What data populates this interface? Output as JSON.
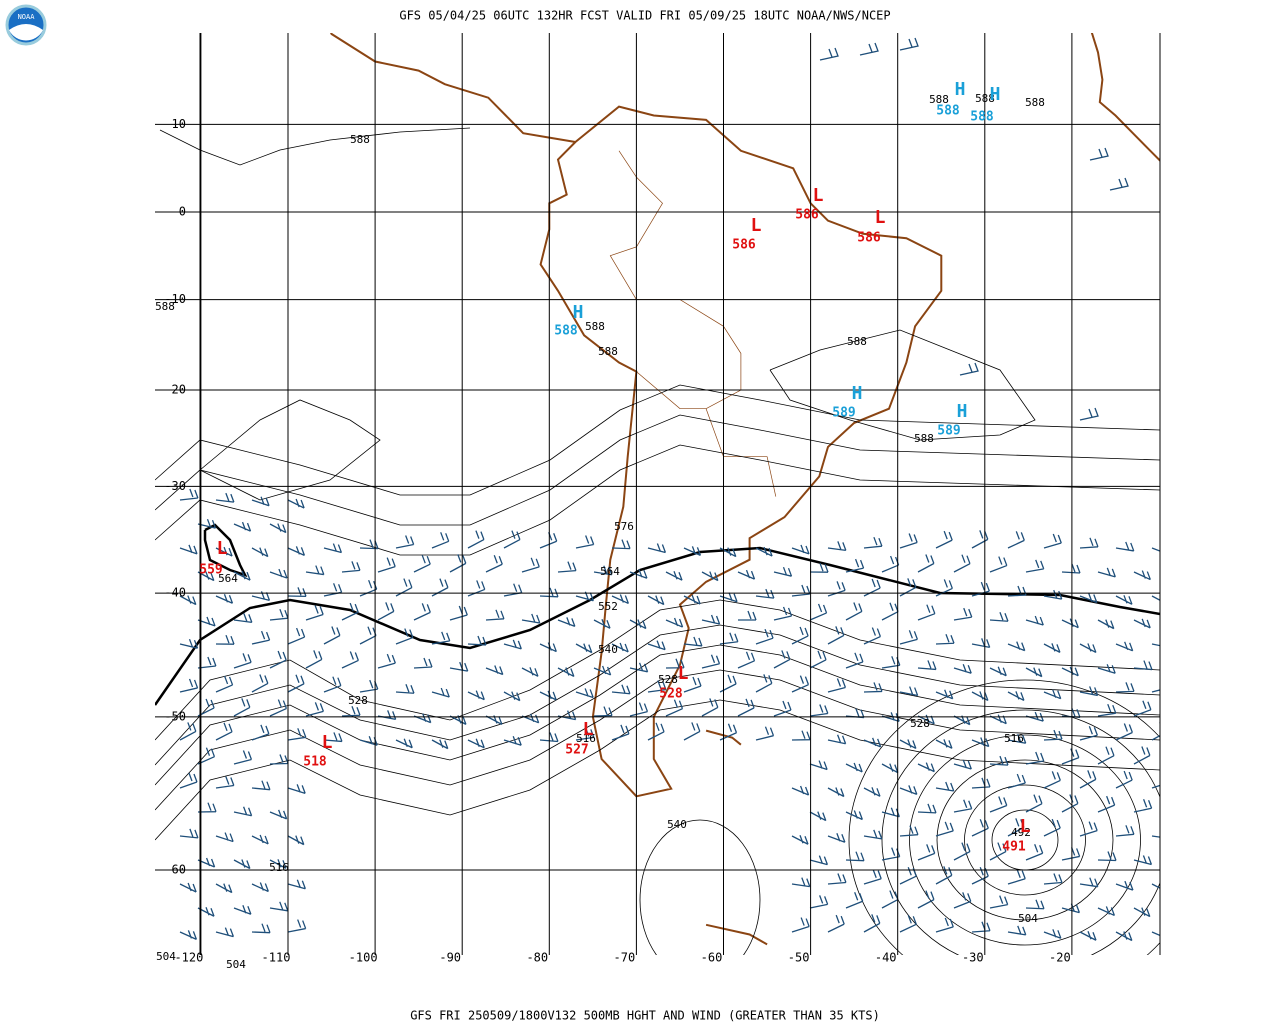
{
  "header": {
    "title": "GFS 05/04/25 06UTC 132HR FCST VALID FRI 05/09/25 18UTC NOAA/NWS/NCEP"
  },
  "footer": {
    "caption": "GFS FRI 250509/1800V132 500MB HGHT AND WIND (GREATER THAN 35 KTS)"
  },
  "logo": {
    "text": "NOAA"
  },
  "axes": {
    "longitudes": [
      -120,
      -110,
      -100,
      -90,
      -80,
      -70,
      -60,
      -50,
      -40,
      -30,
      -20
    ],
    "latitudes": [
      10,
      0,
      -10,
      -20,
      -30,
      -40,
      -50,
      -60
    ]
  },
  "contour_labels": [
    "588",
    "588",
    "588",
    "588",
    "588",
    "588",
    "588",
    "588",
    "588",
    "576",
    "564",
    "564",
    "552",
    "540",
    "528",
    "528",
    "528",
    "516",
    "516",
    "516",
    "540",
    "504",
    "504",
    "504",
    "492"
  ],
  "centers": [
    {
      "kind": "H",
      "value": "588"
    },
    {
      "kind": "H",
      "value": "588"
    },
    {
      "kind": "L",
      "value": "586"
    },
    {
      "kind": "L",
      "value": "586"
    },
    {
      "kind": "L",
      "value": "586"
    },
    {
      "kind": "H",
      "value": "588"
    },
    {
      "kind": "H",
      "value": "589"
    },
    {
      "kind": "H",
      "value": "589"
    },
    {
      "kind": "L",
      "value": "559"
    },
    {
      "kind": "L",
      "value": "528"
    },
    {
      "kind": "L",
      "value": "518"
    },
    {
      "kind": "L",
      "value": "527"
    },
    {
      "kind": "L",
      "value": "491"
    }
  ]
}
